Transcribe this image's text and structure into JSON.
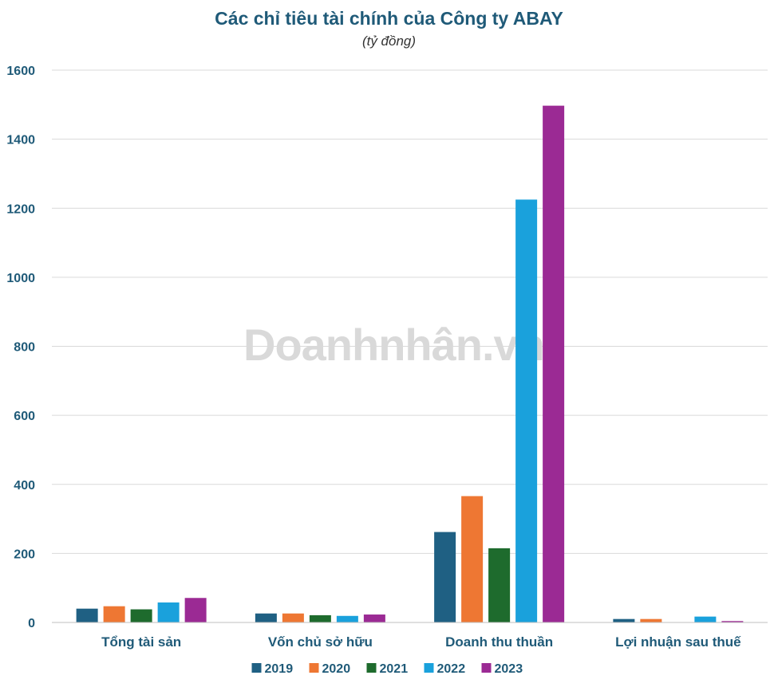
{
  "watermark": "Doanhnhân.vn",
  "chart_data": {
    "type": "bar",
    "title": "Các chỉ tiêu tài chính của Công ty ABAY",
    "subtitle": "(tỷ đồng)",
    "categories": [
      "Tổng tài sản",
      "Vốn chủ sở hữu",
      "Doanh thu thuần",
      "Lợi nhuận sau thuế"
    ],
    "series": [
      {
        "name": "2019",
        "color": "#1f6083",
        "values": [
          40,
          26,
          262,
          10
        ]
      },
      {
        "name": "2020",
        "color": "#ee7733",
        "values": [
          47,
          26,
          366,
          10
        ]
      },
      {
        "name": "2021",
        "color": "#1e6b2d",
        "values": [
          38,
          21,
          215,
          0
        ]
      },
      {
        "name": "2022",
        "color": "#1aa1dc",
        "values": [
          58,
          19,
          1225,
          17
        ]
      },
      {
        "name": "2023",
        "color": "#9b2a94",
        "values": [
          71,
          23,
          1497,
          4
        ]
      }
    ],
    "ylim": [
      0,
      1600
    ],
    "yticks": [
      0,
      200,
      400,
      600,
      800,
      1000,
      1200,
      1400,
      1600
    ],
    "xlabel": "",
    "ylabel": "",
    "grid": true,
    "legend": "bottom"
  }
}
